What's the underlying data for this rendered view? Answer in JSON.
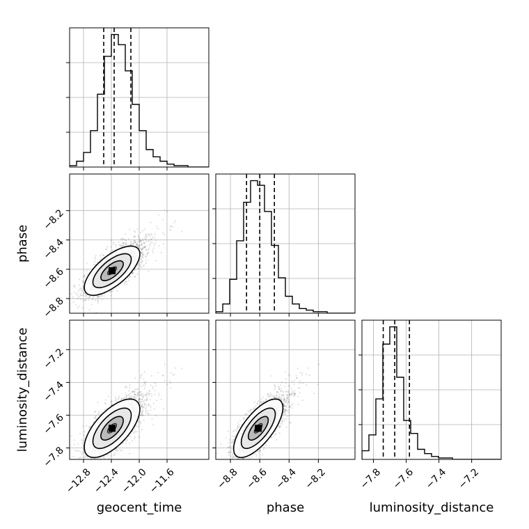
{
  "chart_data": {
    "type": "corner",
    "parameters": [
      "geocent_time",
      "phase",
      "luminosity_distance"
    ],
    "axis_labels": {
      "bottom": [
        "geocent_time",
        "phase",
        "luminosity_distance"
      ],
      "left": [
        "phase",
        "luminosity_distance"
      ]
    },
    "ranges": {
      "geocent_time": [
        -13.0,
        -11.0
      ],
      "phase": [
        -8.9,
        -7.95
      ],
      "luminosity_distance": [
        -7.87,
        -7.02
      ]
    },
    "ticks": {
      "geocent_time": [
        -12.8,
        -12.4,
        -12.0,
        -11.6
      ],
      "phase": [
        -8.8,
        -8.6,
        -8.4,
        -8.2
      ],
      "luminosity_distance": [
        -7.8,
        -7.6,
        -7.4,
        -7.2
      ]
    },
    "tick_labels": {
      "geocent_time": [
        "−12.8",
        "−12.4",
        "−12.0",
        "−11.6"
      ],
      "phase": [
        "−8.8",
        "−8.6",
        "−8.4",
        "−8.2"
      ],
      "luminosity_distance": [
        "−7.8",
        "−7.6",
        "−7.4",
        "−7.2"
      ]
    },
    "quantiles": {
      "geocent_time": [
        -12.51,
        -12.36,
        -12.12
      ],
      "phase": [
        -8.69,
        -8.6,
        -8.5
      ],
      "luminosity_distance": [
        -7.74,
        -7.67,
        -7.58
      ]
    },
    "histograms": {
      "geocent_time": {
        "bin_edges": [
          -13.0,
          -12.9,
          -12.8,
          -12.7,
          -12.6,
          -12.5,
          -12.4,
          -12.3,
          -12.2,
          -12.1,
          -12.0,
          -11.9,
          -11.8,
          -11.7,
          -11.6,
          -11.5,
          -11.4,
          -11.3,
          -11.2,
          -11.1,
          -11.0
        ],
        "counts": [
          1,
          4,
          10,
          25,
          50,
          76,
          91,
          84,
          66,
          43,
          25,
          12,
          7,
          4,
          2,
          1,
          1,
          0,
          0,
          0
        ]
      },
      "phase": {
        "bin_edges": [
          -8.9,
          -8.8525,
          -8.805,
          -8.7575,
          -8.71,
          -8.6625,
          -8.615,
          -8.5675,
          -8.52,
          -8.4725,
          -8.425,
          -8.3775,
          -8.33,
          -8.2825,
          -8.235,
          -8.1875,
          -8.14,
          -8.0925,
          -8.045,
          -7.9975,
          -7.95
        ],
        "counts": [
          1,
          6,
          22,
          47,
          72,
          86,
          83,
          66,
          44,
          23,
          11,
          6,
          3,
          2,
          1,
          1,
          0,
          0,
          0,
          0
        ]
      },
      "luminosity_distance": {
        "bin_edges": [
          -7.87,
          -7.8275,
          -7.785,
          -7.7425,
          -7.7,
          -7.6575,
          -7.615,
          -7.5725,
          -7.53,
          -7.4875,
          -7.445,
          -7.4025,
          -7.36,
          -7.3175,
          -7.275,
          -7.2325,
          -7.19,
          -7.1475,
          -7.105,
          -7.0625,
          -7.02
        ],
        "counts": [
          6,
          17,
          42,
          80,
          92,
          57,
          27,
          18,
          7,
          4,
          2,
          1,
          1,
          0,
          0,
          0,
          0,
          0,
          0,
          0
        ]
      }
    },
    "distribution": {
      "means": [
        -12.39,
        -8.61,
        -7.68
      ],
      "sigmas": [
        0.19,
        0.08,
        0.085
      ],
      "correlations": [
        [
          1,
          0.68,
          0.65
        ],
        [
          0.68,
          1,
          0.7
        ],
        [
          0.65,
          0.7,
          1
        ]
      ]
    },
    "grid": true,
    "contour_levels": 3
  }
}
